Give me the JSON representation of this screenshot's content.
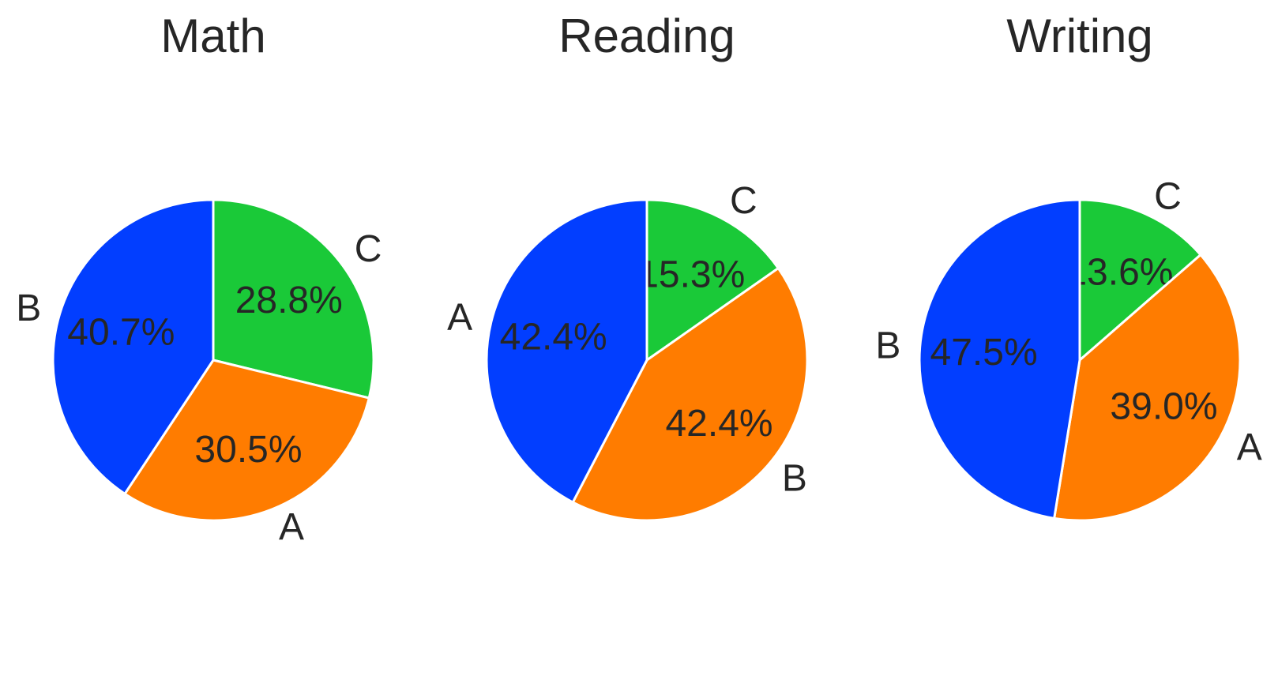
{
  "chart_data": [
    {
      "type": "pie",
      "title": "Math",
      "start_angle_deg": 90,
      "direction": "clockwise",
      "slices": [
        {
          "label": "C",
          "value": 28.8,
          "pct_text": "28.8%",
          "color": "#1ac938"
        },
        {
          "label": "A",
          "value": 30.5,
          "pct_text": "30.5%",
          "color": "#ff7c00"
        },
        {
          "label": "B",
          "value": 40.7,
          "pct_text": "40.7%",
          "color": "#023eff"
        }
      ]
    },
    {
      "type": "pie",
      "title": "Reading",
      "start_angle_deg": 90,
      "direction": "clockwise",
      "slices": [
        {
          "label": "C",
          "value": 15.3,
          "pct_text": "15.3%",
          "color": "#1ac938"
        },
        {
          "label": "B",
          "value": 42.4,
          "pct_text": "42.4%",
          "color": "#ff7c00"
        },
        {
          "label": "A",
          "value": 42.4,
          "pct_text": "42.4%",
          "color": "#023eff"
        }
      ]
    },
    {
      "type": "pie",
      "title": "Writing",
      "start_angle_deg": 90,
      "direction": "clockwise",
      "slices": [
        {
          "label": "C",
          "value": 13.6,
          "pct_text": "13.6%",
          "color": "#1ac938"
        },
        {
          "label": "A",
          "value": 39.0,
          "pct_text": "39.0%",
          "color": "#ff7c00"
        },
        {
          "label": "B",
          "value": 47.5,
          "pct_text": "47.5%",
          "color": "#023eff"
        }
      ]
    }
  ]
}
